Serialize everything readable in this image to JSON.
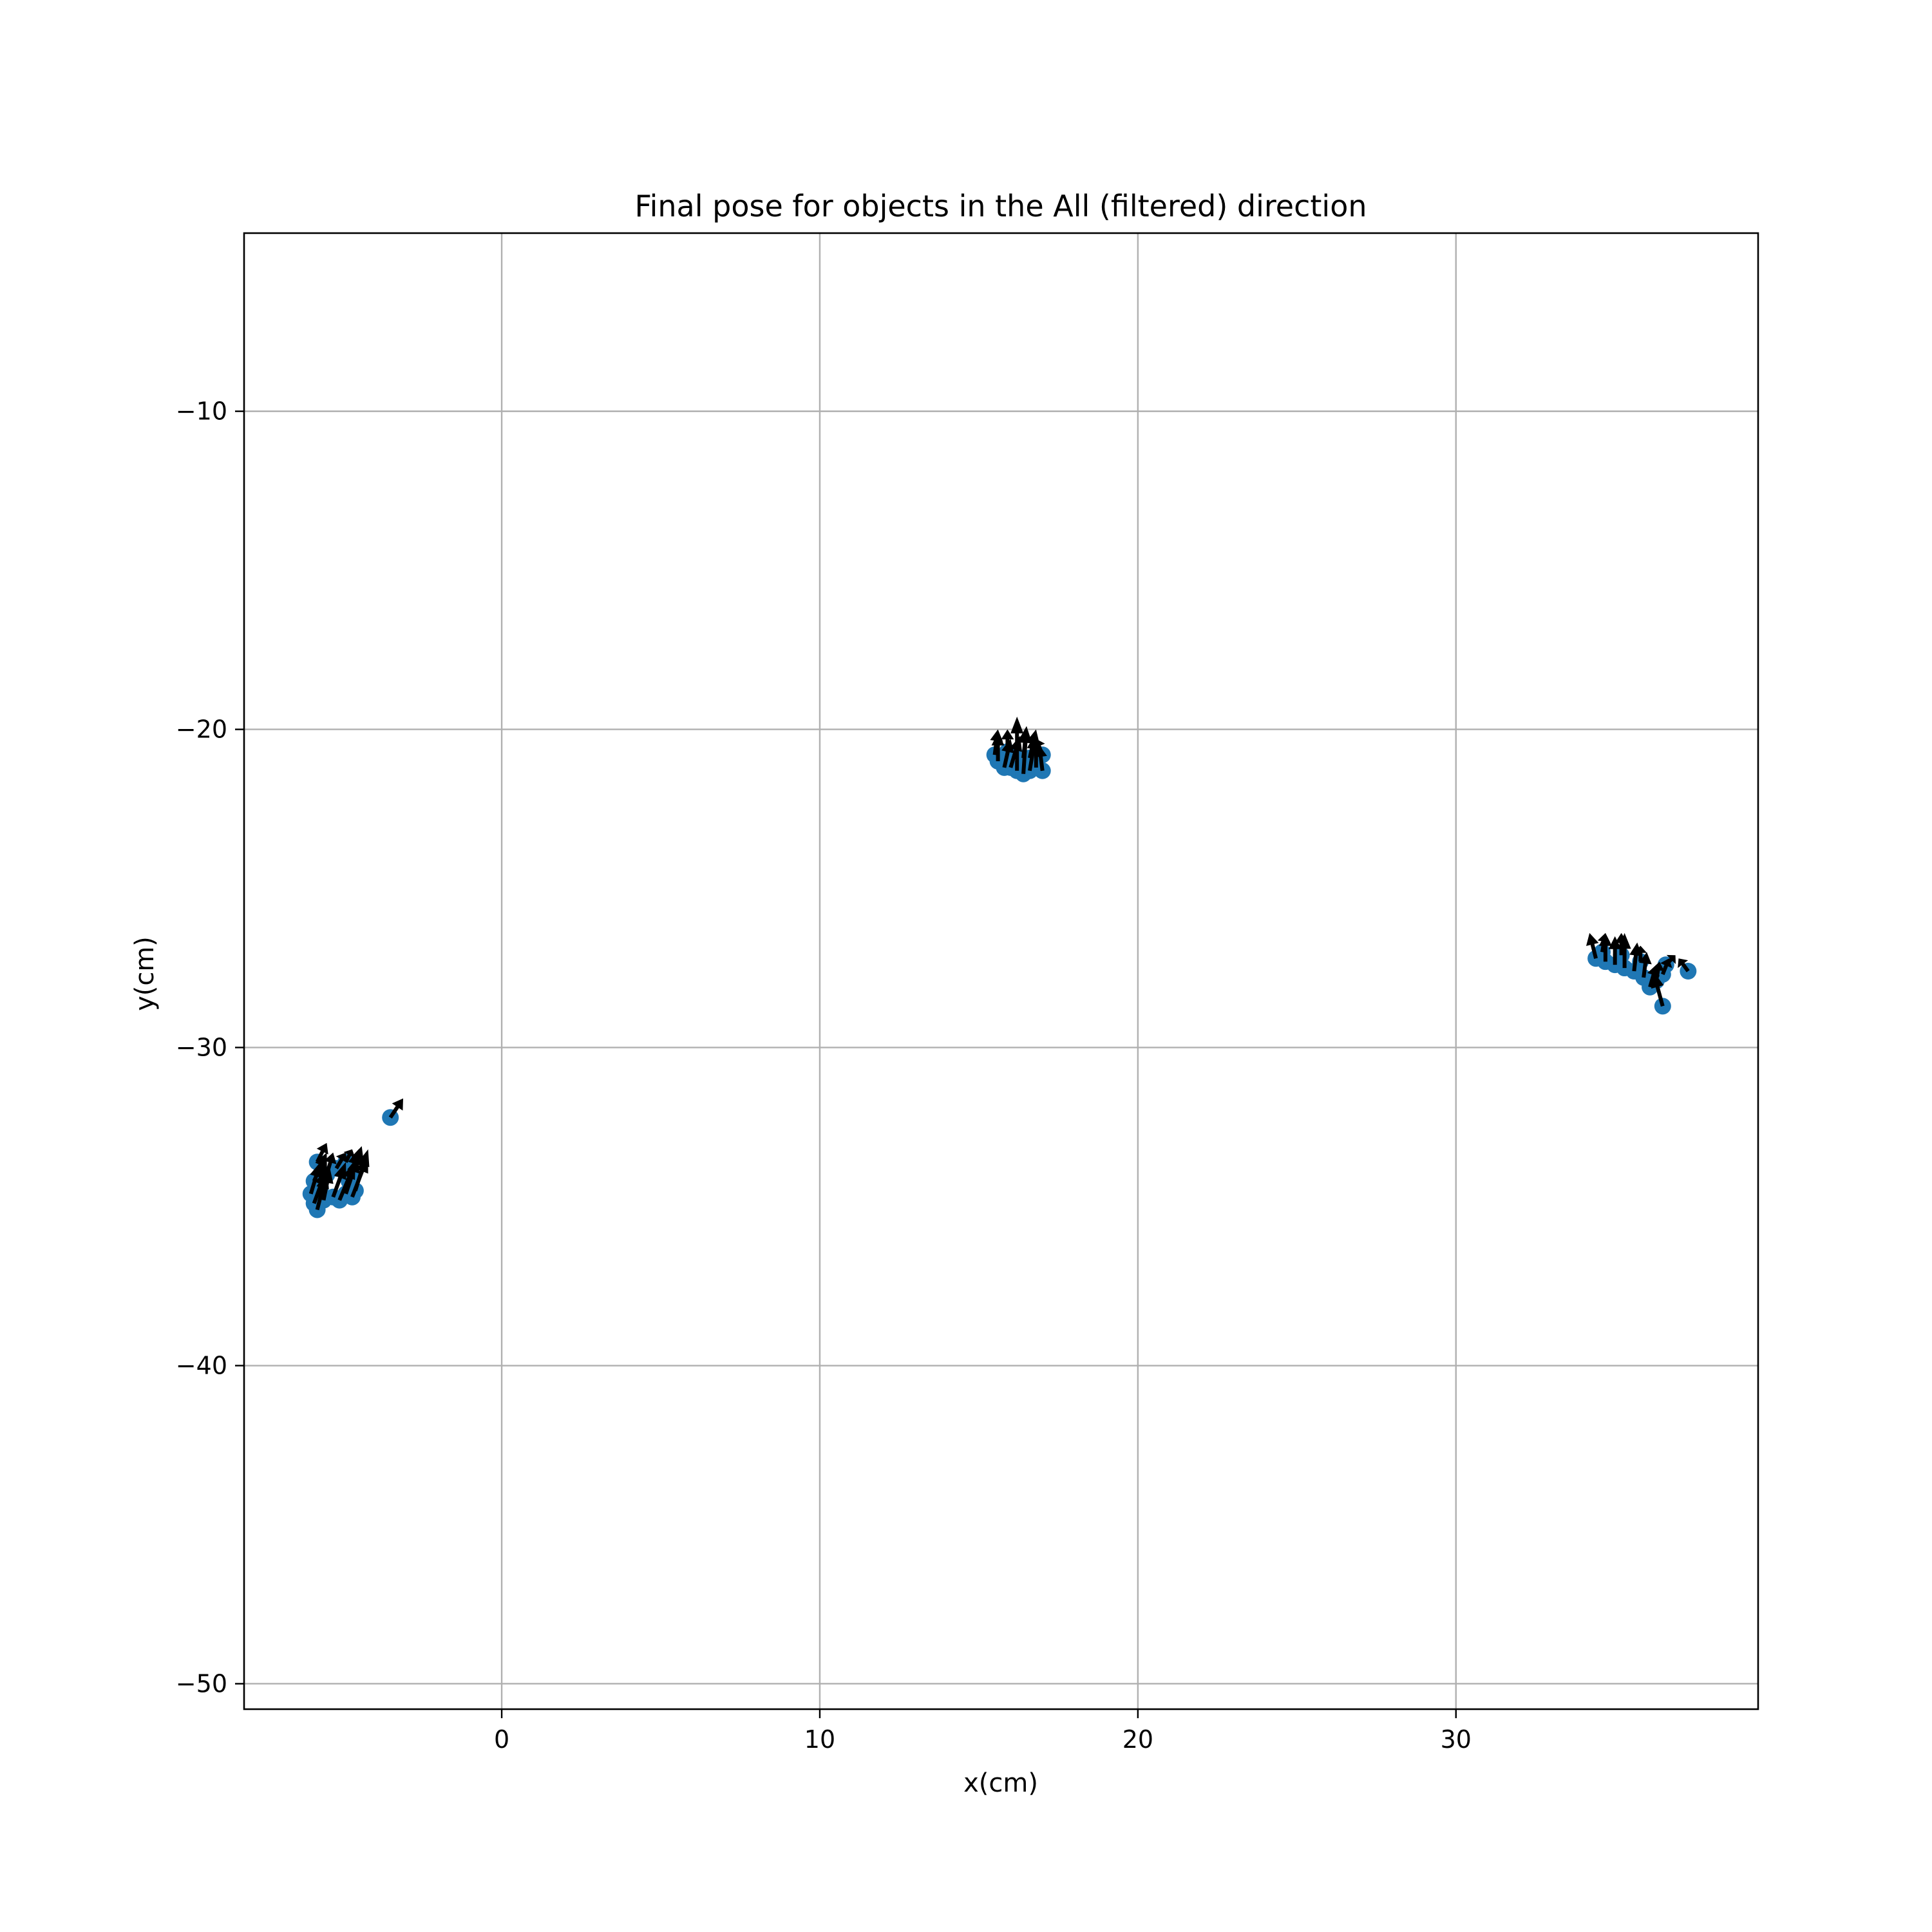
{
  "chart_data": {
    "type": "scatter",
    "title": "Final pose for objects in the All (filtered) direction",
    "xlabel": "x(cm)",
    "ylabel": "y(cm)",
    "xlim": [
      -8.1,
      39.5
    ],
    "ylim": [
      -50.8,
      -4.4
    ],
    "xticks": [
      0,
      10,
      20,
      30
    ],
    "xtick_labels": [
      "0",
      "10",
      "20",
      "30"
    ],
    "yticks": [
      -10,
      -20,
      -30,
      -40,
      -50
    ],
    "ytick_labels": [
      "−10",
      "−20",
      "−30",
      "−40",
      "−50"
    ],
    "grid": true,
    "legend": "none",
    "colors": {
      "point": "#1f77b4",
      "arrow": "#000000",
      "grid": "#b0b0b0",
      "axes": "#000000"
    },
    "series": [
      {
        "marker": "circle",
        "arrows": "orientation",
        "points": [
          {
            "x": -5.8,
            "y": -33.6,
            "dx": 0.3,
            "dy": 0.6
          },
          {
            "x": -5.9,
            "y": -34.2,
            "dx": 0.4,
            "dy": 0.9
          },
          {
            "x": -6.0,
            "y": -34.6,
            "dx": 0.3,
            "dy": 1.0
          },
          {
            "x": -5.9,
            "y": -34.9,
            "dx": 0.4,
            "dy": 1.1
          },
          {
            "x": -5.8,
            "y": -35.1,
            "dx": 0.3,
            "dy": 1.2
          },
          {
            "x": -5.6,
            "y": -34.8,
            "dx": 0.2,
            "dy": 1.0
          },
          {
            "x": -5.7,
            "y": -34.4,
            "dx": 0.1,
            "dy": 0.9
          },
          {
            "x": -5.5,
            "y": -34.0,
            "dx": 0.2,
            "dy": 0.7
          },
          {
            "x": -5.3,
            "y": -34.7,
            "dx": 0.4,
            "dy": 1.1
          },
          {
            "x": -5.1,
            "y": -34.8,
            "dx": 0.5,
            "dy": 1.2
          },
          {
            "x": -4.9,
            "y": -34.6,
            "dx": 0.4,
            "dy": 1.2
          },
          {
            "x": -4.7,
            "y": -34.7,
            "dx": 0.5,
            "dy": 1.3
          },
          {
            "x": -4.6,
            "y": -34.5,
            "dx": 0.4,
            "dy": 1.3
          },
          {
            "x": -4.8,
            "y": -34.2,
            "dx": 0.3,
            "dy": 1.0
          },
          {
            "x": -5.2,
            "y": -33.8,
            "dx": 0.3,
            "dy": 0.5
          },
          {
            "x": -4.9,
            "y": -33.6,
            "dx": 0.2,
            "dy": 0.4
          },
          {
            "x": -4.7,
            "y": -34.0,
            "dx": 0.3,
            "dy": 0.9
          },
          {
            "x": -3.5,
            "y": -32.2,
            "dx": 0.4,
            "dy": 0.6
          },
          {
            "x": 15.5,
            "y": -20.8,
            "dx": 0.1,
            "dy": 0.8
          },
          {
            "x": 15.6,
            "y": -21.0,
            "dx": 0.0,
            "dy": 0.9
          },
          {
            "x": 15.8,
            "y": -21.2,
            "dx": 0.2,
            "dy": 0.9
          },
          {
            "x": 16.0,
            "y": -21.2,
            "dx": 0.3,
            "dy": 1.0
          },
          {
            "x": 16.2,
            "y": -21.3,
            "dx": 0.0,
            "dy": 1.7
          },
          {
            "x": 16.4,
            "y": -21.4,
            "dx": 0.1,
            "dy": 1.5
          },
          {
            "x": 16.6,
            "y": -21.3,
            "dx": 0.2,
            "dy": 1.2
          },
          {
            "x": 16.8,
            "y": -21.2,
            "dx": 0.0,
            "dy": 0.9
          },
          {
            "x": 17.0,
            "y": -21.3,
            "dx": -0.1,
            "dy": 0.8
          },
          {
            "x": 17.0,
            "y": -20.8,
            "dx": -0.2,
            "dy": 0.5
          },
          {
            "x": 16.4,
            "y": -20.9,
            "dx": 0.1,
            "dy": 1.0
          },
          {
            "x": 15.9,
            "y": -20.7,
            "dx": 0.0,
            "dy": 0.7
          },
          {
            "x": 16.6,
            "y": -20.9,
            "dx": 0.2,
            "dy": 0.9
          },
          {
            "x": 34.4,
            "y": -27.2,
            "dx": -0.2,
            "dy": 0.8
          },
          {
            "x": 34.7,
            "y": -27.3,
            "dx": 0.0,
            "dy": 0.9
          },
          {
            "x": 35.0,
            "y": -27.4,
            "dx": 0.0,
            "dy": 0.9
          },
          {
            "x": 35.3,
            "y": -27.5,
            "dx": 0.0,
            "dy": 1.1
          },
          {
            "x": 35.6,
            "y": -27.6,
            "dx": 0.1,
            "dy": 0.9
          },
          {
            "x": 35.9,
            "y": -27.8,
            "dx": 0.1,
            "dy": 0.8
          },
          {
            "x": 36.1,
            "y": -28.1,
            "dx": 0.2,
            "dy": 0.7
          },
          {
            "x": 36.3,
            "y": -27.9,
            "dx": 0.1,
            "dy": 0.6
          },
          {
            "x": 36.5,
            "y": -27.7,
            "dx": 0.2,
            "dy": 0.5
          },
          {
            "x": 36.6,
            "y": -27.4,
            "dx": 0.3,
            "dy": 0.3
          },
          {
            "x": 36.5,
            "y": -28.7,
            "dx": -0.3,
            "dy": 1.1
          },
          {
            "x": 37.3,
            "y": -27.6,
            "dx": -0.3,
            "dy": 0.4
          },
          {
            "x": 35.2,
            "y": -27.1,
            "dx": 0.0,
            "dy": 0.7
          },
          {
            "x": 34.6,
            "y": -27.0,
            "dx": 0.1,
            "dy": 0.6
          },
          {
            "x": 35.8,
            "y": -27.3,
            "dx": 0.0,
            "dy": 0.5
          }
        ]
      }
    ]
  }
}
